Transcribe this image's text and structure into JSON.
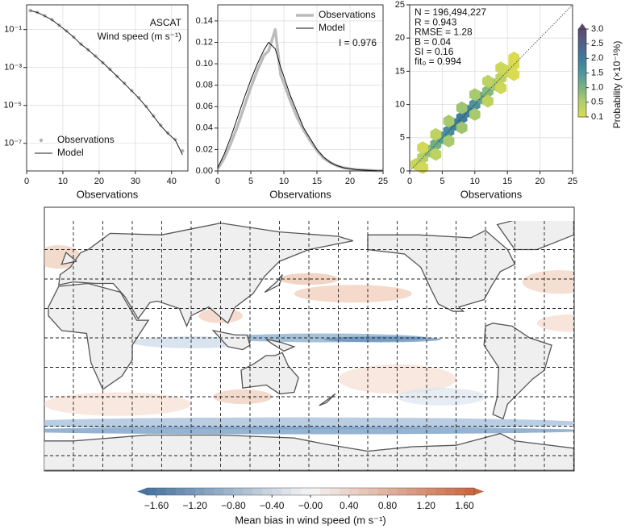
{
  "chart_data": [
    {
      "type": "line",
      "log_y": true,
      "xlabel": "Observations",
      "annotations": [
        "ASCAT",
        "Wind speed (m s⁻¹)"
      ],
      "xlim": [
        0,
        44.5
      ],
      "xticks": [
        0,
        10,
        20,
        30,
        40
      ],
      "ylim": [
        3.5e-09,
        2
      ],
      "yticks": [
        {
          "value": 0.1,
          "label": "10⁻¹"
        },
        {
          "value": 0.001,
          "label": "10⁻³"
        },
        {
          "value": 1e-05,
          "label": "10⁻⁵"
        },
        {
          "value": 1e-07,
          "label": "10⁻⁷"
        }
      ],
      "grid": true,
      "legend": "lower left",
      "x": [
        1,
        3,
        5,
        7,
        9,
        11,
        13,
        15,
        17,
        19,
        21,
        23,
        25,
        27,
        29,
        31,
        33,
        35,
        37,
        39,
        41,
        43
      ],
      "series": [
        {
          "name": "Observations",
          "color": "#b3b3b3",
          "style": "markers",
          "values": [
            1.0,
            0.8,
            0.53,
            0.33,
            0.17,
            0.085,
            0.04,
            0.017,
            0.0085,
            0.004,
            0.0018,
            0.0008,
            0.00034,
            0.00015,
            6e-05,
            2.5e-05,
            9e-06,
            2.8e-06,
            9e-07,
            3.5e-07,
            1.6e-07,
            4e-08
          ]
        },
        {
          "name": "Model",
          "color": "#222222",
          "style": "line",
          "linewidth": 1,
          "values": [
            1.0,
            0.78,
            0.52,
            0.32,
            0.165,
            0.083,
            0.039,
            0.0168,
            0.0084,
            0.0039,
            0.0018,
            0.00079,
            0.00033,
            0.00014,
            5.8e-05,
            2.4e-05,
            8.5e-06,
            2.7e-06,
            8.5e-07,
            3.3e-07,
            1.5e-07,
            2.5e-08
          ]
        }
      ]
    },
    {
      "type": "line",
      "xlabel": "Observations",
      "annotations": [
        "I = 0.976"
      ],
      "xlim": [
        0,
        25
      ],
      "xticks": [
        0,
        5,
        10,
        15,
        20,
        25
      ],
      "ylim": [
        0,
        0.155
      ],
      "yticks": [
        {
          "value": 0,
          "label": "0.00"
        },
        {
          "value": 0.02,
          "label": "0.02"
        },
        {
          "value": 0.04,
          "label": "0.04"
        },
        {
          "value": 0.06,
          "label": "0.06"
        },
        {
          "value": 0.08,
          "label": "0.08"
        },
        {
          "value": 0.1,
          "label": "0.10"
        },
        {
          "value": 0.12,
          "label": "0.12"
        },
        {
          "value": 0.14,
          "label": "0.14"
        }
      ],
      "grid": true,
      "legend": "upper right",
      "x": [
        0,
        1,
        2,
        3,
        4,
        5,
        6,
        7,
        7.7,
        8.7,
        9.5,
        10,
        11,
        12,
        13,
        14,
        15,
        16,
        17,
        18,
        19,
        20,
        21,
        22,
        23,
        24,
        25
      ],
      "series": [
        {
          "name": "Observations",
          "color": "#bbbbbb",
          "style": "line",
          "linewidth": 3.5,
          "values": [
            0.002,
            0.012,
            0.026,
            0.042,
            0.06,
            0.078,
            0.094,
            0.108,
            0.112,
            0.132,
            0.09,
            0.082,
            0.065,
            0.05,
            0.038,
            0.028,
            0.019,
            0.012,
            0.008,
            0.005,
            0.003,
            0.002,
            0.0012,
            0.0008,
            0.0005,
            0.0003,
            0.0002
          ]
        },
        {
          "name": "Model",
          "color": "#111111",
          "style": "line",
          "linewidth": 1,
          "values": [
            0.003,
            0.016,
            0.032,
            0.05,
            0.068,
            0.085,
            0.1,
            0.113,
            0.12,
            0.114,
            0.097,
            0.088,
            0.07,
            0.055,
            0.04,
            0.03,
            0.02,
            0.013,
            0.008,
            0.005,
            0.003,
            0.002,
            0.0012,
            0.0008,
            0.0005,
            0.0003,
            0.0002
          ]
        }
      ]
    },
    {
      "type": "hexbin",
      "xlabel": "Observations",
      "annotations": [
        "N = 196,494,227",
        "R = 0.943",
        "RMSE = 1.28",
        "B = 0.04",
        "SI = 0.16",
        "fit₀ = 0.994"
      ],
      "xlim": [
        0,
        25
      ],
      "xticks": [
        0,
        5,
        10,
        15,
        20,
        25
      ],
      "ylim": [
        0,
        25
      ],
      "yticks": [
        0,
        5,
        10,
        15,
        20,
        25
      ],
      "grid": true,
      "points": [
        {
          "x": 1,
          "y": 1,
          "p": 0.3
        },
        {
          "x": 2,
          "y": 2,
          "p": 0.5
        },
        {
          "x": 3,
          "y": 3,
          "p": 0.8
        },
        {
          "x": 4,
          "y": 4,
          "p": 1.1
        },
        {
          "x": 5,
          "y": 5,
          "p": 1.4
        },
        {
          "x": 6,
          "y": 6,
          "p": 1.7
        },
        {
          "x": 7,
          "y": 7,
          "p": 1.9
        },
        {
          "x": 8,
          "y": 8,
          "p": 2.0
        },
        {
          "x": 9,
          "y": 9,
          "p": 1.9
        },
        {
          "x": 10,
          "y": 10,
          "p": 1.6
        },
        {
          "x": 11,
          "y": 11,
          "p": 1.2
        },
        {
          "x": 12,
          "y": 12,
          "p": 0.9
        },
        {
          "x": 13,
          "y": 13,
          "p": 0.6
        },
        {
          "x": 14,
          "y": 14,
          "p": 0.4
        },
        {
          "x": 15,
          "y": 15,
          "p": 0.25
        },
        {
          "x": 16,
          "y": 16,
          "p": 0.15
        },
        {
          "x": 2,
          "y": 3.5,
          "p": 0.2
        },
        {
          "x": 4,
          "y": 5.5,
          "p": 0.4
        },
        {
          "x": 6,
          "y": 7.5,
          "p": 0.6
        },
        {
          "x": 8,
          "y": 9.5,
          "p": 0.7
        },
        {
          "x": 10,
          "y": 11.5,
          "p": 0.6
        },
        {
          "x": 12,
          "y": 13.5,
          "p": 0.4
        },
        {
          "x": 14,
          "y": 15.5,
          "p": 0.25
        },
        {
          "x": 16,
          "y": 17,
          "p": 0.12
        },
        {
          "x": 2,
          "y": 0.5,
          "p": 0.2
        },
        {
          "x": 4,
          "y": 2.5,
          "p": 0.4
        },
        {
          "x": 6,
          "y": 4.5,
          "p": 0.6
        },
        {
          "x": 8,
          "y": 6.5,
          "p": 0.7
        },
        {
          "x": 10,
          "y": 8.5,
          "p": 0.6
        },
        {
          "x": 12,
          "y": 10.5,
          "p": 0.4
        },
        {
          "x": 14,
          "y": 12.5,
          "p": 0.25
        },
        {
          "x": 16,
          "y": 14.5,
          "p": 0.12
        }
      ],
      "colorbar": {
        "label": "Probability (×10⁻¹%)",
        "ticks": [
          0.1,
          0.5,
          {
            "value": 1,
            "label": "1.0"
          },
          1.5,
          {
            "value": 2,
            "label": "2.0"
          },
          2.5,
          {
            "value": 3,
            "label": "3.0"
          }
        ],
        "colors": [
          "#dcdc4e",
          "#b4cf68",
          "#7ab47f",
          "#4d97a0",
          "#3f7c9d",
          "#4f6289",
          "#5c4a6e"
        ]
      }
    },
    {
      "type": "map",
      "colorbar": {
        "label": "Mean bias in wind speed (m s⁻¹)",
        "clim": [
          -1.7,
          1.7
        ],
        "ticks": [
          {
            "value": -1.6,
            "label": "−1.60"
          },
          {
            "value": -1.2,
            "label": "−1.20"
          },
          {
            "value": -0.8,
            "label": "−0.80"
          },
          {
            "value": -0.4,
            "label": "−0.40"
          },
          {
            "value": 0,
            "label": "−0.00"
          },
          {
            "value": 0.4,
            "label": "0.40"
          },
          {
            "value": 0.8,
            "label": "0.80"
          },
          {
            "value": 1.2,
            "label": "1.20"
          },
          {
            "value": 1.6,
            "label": "1.60"
          }
        ],
        "colors": [
          "#4673a0",
          "#f5f5f5",
          "#c8643c"
        ]
      }
    }
  ]
}
